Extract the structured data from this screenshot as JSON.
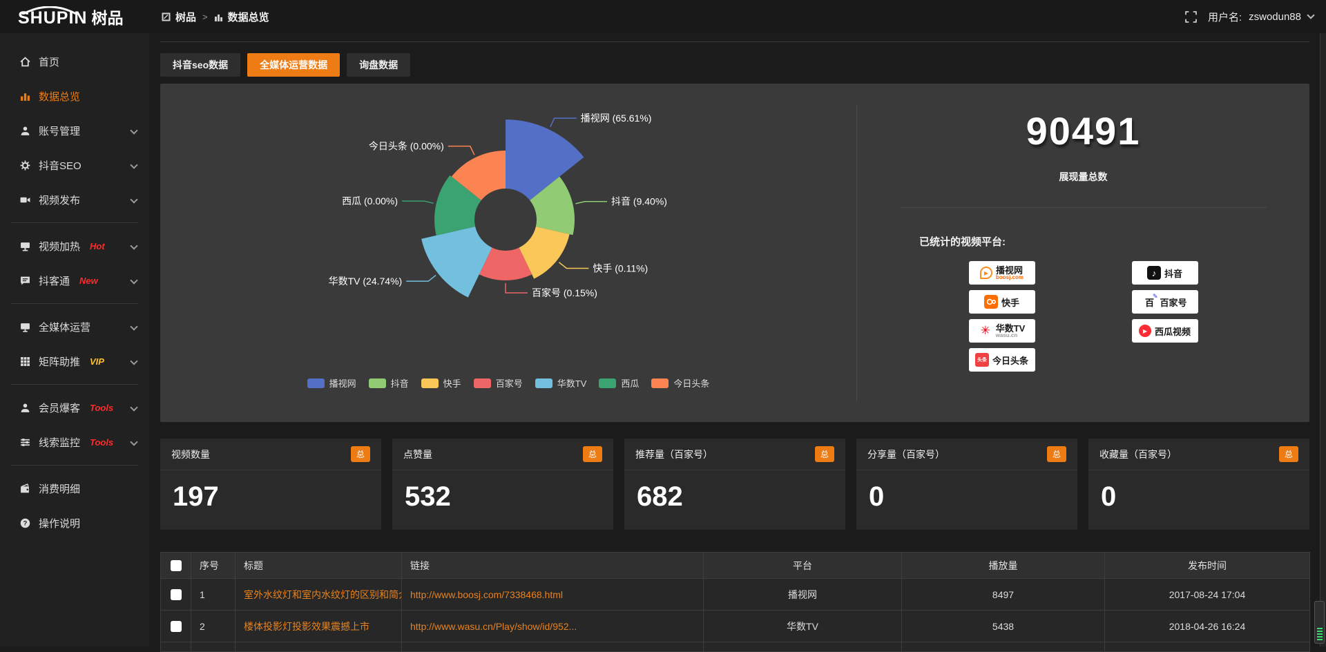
{
  "brand": {
    "logo_en": "SHUPIN",
    "logo_cn": "树品"
  },
  "header": {
    "breadcrumb": [
      {
        "label": "树品"
      },
      {
        "label": "数据总览"
      }
    ],
    "separator": ">",
    "user_label": "用户名:",
    "username": "zswodun88"
  },
  "sidebar": {
    "items": [
      {
        "label": "首页"
      },
      {
        "label": "数据总览",
        "active": true
      },
      {
        "label": "账号管理",
        "expandable": true
      },
      {
        "label": "抖音SEO",
        "expandable": true
      },
      {
        "label": "视频发布",
        "expandable": true
      },
      {
        "label": "视频加热",
        "badge": "Hot",
        "expandable": true
      },
      {
        "label": "抖客通",
        "badge": "New",
        "expandable": true
      },
      {
        "label": "全媒体运营",
        "expandable": true
      },
      {
        "label": "矩阵助推",
        "badge": "VIP",
        "expandable": true
      },
      {
        "label": "会员爆客",
        "badge": "Tools",
        "expandable": true
      },
      {
        "label": "线索监控",
        "badge": "Tools",
        "expandable": true
      },
      {
        "label": "消费明细"
      },
      {
        "label": "操作说明"
      }
    ]
  },
  "tabs": [
    {
      "label": "抖音seo数据"
    },
    {
      "label": "全媒体运营数据",
      "active": true
    },
    {
      "label": "询盘数据"
    }
  ],
  "chart_data": {
    "type": "pie",
    "subtype": "nightingale-rose",
    "title": "",
    "legend_position": "bottom",
    "label_format": "{name} ({pct}%)",
    "slices": [
      {
        "name": "播视网",
        "value_pct": 65.61,
        "label": "播视网 (65.61%)",
        "color": "#5470c6",
        "display_radius": 145
      },
      {
        "name": "抖音",
        "value_pct": 9.4,
        "label": "抖音 (9.40%)",
        "color": "#91cc75",
        "display_radius": 100
      },
      {
        "name": "快手",
        "value_pct": 0.11,
        "label": "快手 (0.11%)",
        "color": "#fac858",
        "display_radius": 95
      },
      {
        "name": "百家号",
        "value_pct": 0.15,
        "label": "百家号 (0.15%)",
        "color": "#ee6666",
        "display_radius": 88
      },
      {
        "name": "华数TV",
        "value_pct": 24.74,
        "label": "华数TV (24.74%)",
        "color": "#73c0de",
        "display_radius": 125
      },
      {
        "name": "西瓜",
        "value_pct": 0.0,
        "label": "西瓜 (0.00%)",
        "color": "#3ba272",
        "display_radius": 103
      },
      {
        "name": "今日头条",
        "value_pct": 0.0,
        "label": "今日头条 (0.00%)",
        "color": "#fc8452",
        "display_radius": 100
      }
    ],
    "inner_radius": 45,
    "start_angle_deg": -90,
    "center": [
      405,
      185
    ]
  },
  "summary": {
    "total_value": "90491",
    "total_label": "展现量总数",
    "platforms_label": "已统计的视频平台:",
    "platforms": [
      {
        "name": "播视网",
        "sub": "boosj.com"
      },
      {
        "name": "抖音"
      },
      {
        "name": "快手"
      },
      {
        "name": "百家号"
      },
      {
        "name": "华数TV",
        "sub": "wasu.cn"
      },
      {
        "name": "西瓜视频"
      },
      {
        "name": "今日头条",
        "icon_text": "头条"
      }
    ]
  },
  "cards": [
    {
      "title": "视频数量",
      "badge": "总",
      "value": "197"
    },
    {
      "title": "点赞量",
      "badge": "总",
      "value": "532"
    },
    {
      "title": "推荐量（百家号）",
      "badge": "总",
      "value": "682"
    },
    {
      "title": "分享量（百家号）",
      "badge": "总",
      "value": "0"
    },
    {
      "title": "收藏量（百家号）",
      "badge": "总",
      "value": "0"
    }
  ],
  "table": {
    "headers": [
      "序号",
      "标题",
      "链接",
      "平台",
      "播放量",
      "发布时间"
    ],
    "rows": [
      {
        "num": "1",
        "title": "室外水纹灯和室内水纹灯的区别和简介",
        "link": "http://www.boosj.com/7338468.html",
        "platform": "播视网",
        "plays": "8497",
        "time": "2017-08-24 17:04"
      },
      {
        "num": "2",
        "title": "楼体投影灯投影效果震撼上市",
        "link": "http://www.wasu.cn/Play/show/id/952...",
        "platform": "华数TV",
        "plays": "5438",
        "time": "2018-04-26 16:24"
      }
    ]
  },
  "colors": {
    "accent": "#ee7c14",
    "link": "#e8821e",
    "hot": "#ff2b2b",
    "vip": "#ffc02e",
    "panel_bg": "#3a3a3a",
    "page_bg": "#1b1b1b"
  }
}
